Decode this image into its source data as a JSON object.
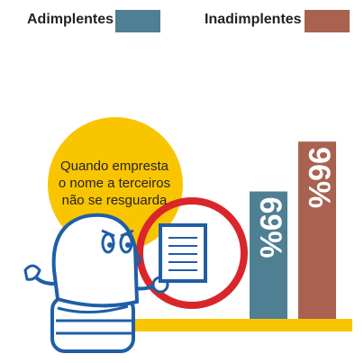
{
  "legend": {
    "items": [
      {
        "label": "Adimplentes",
        "color": "#4e7f93"
      },
      {
        "label": "Inadimplentes",
        "color": "#a8624f"
      }
    ]
  },
  "callout": {
    "lines": [
      "Quando empresta",
      "o nome a terceiros",
      "não se resguarda"
    ]
  },
  "colors": {
    "accent_yellow": "#f9c500",
    "ring_red": "#d9262b",
    "character_blue": "#1f5ea8"
  },
  "icons": [
    "character-illustration",
    "document-icon",
    "magnifier-ring"
  ],
  "chart_data": {
    "type": "bar",
    "categories": [
      "Quando empresta o nome a terceiros não se resguarda"
    ],
    "series": [
      {
        "name": "Adimplentes",
        "values": [
          69
        ],
        "label": "69%"
      },
      {
        "name": "Inadimplentes",
        "values": [
          96
        ],
        "label": "96%"
      }
    ],
    "ylim": [
      0,
      100
    ]
  }
}
